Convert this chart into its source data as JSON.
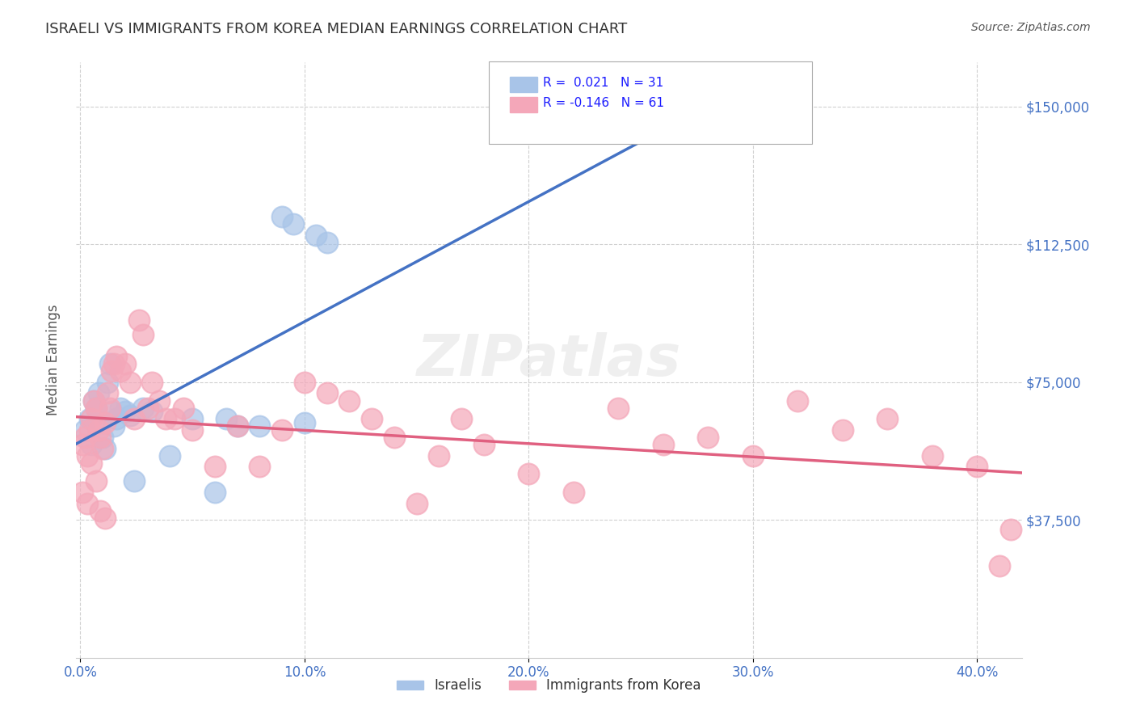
{
  "title": "ISRAELI VS IMMIGRANTS FROM KOREA MEDIAN EARNINGS CORRELATION CHART",
  "source": "Source: ZipAtlas.com",
  "ylabel": "Median Earnings",
  "watermark": "ZIPatlas",
  "ytick_labels": [
    "$37,500",
    "$75,000",
    "$112,500",
    "$150,000"
  ],
  "ytick_values": [
    37500,
    75000,
    112500,
    150000
  ],
  "ymin": 0,
  "ymax": 162000,
  "xmin": -0.002,
  "xmax": 0.42,
  "israeli_color": "#a8c4e8",
  "korea_color": "#f4a7b9",
  "israeli_line_color": "#4472c4",
  "korea_line_color": "#e06080",
  "grid_color": "#d0d0d0",
  "title_color": "#333333",
  "axis_label_color": "#4472c4",
  "israeli_x": [
    0.002,
    0.004,
    0.005,
    0.006,
    0.007,
    0.008,
    0.009,
    0.01,
    0.011,
    0.012,
    0.013,
    0.014,
    0.015,
    0.016,
    0.018,
    0.02,
    0.022,
    0.024,
    0.028,
    0.032,
    0.04,
    0.05,
    0.06,
    0.065,
    0.07,
    0.08,
    0.09,
    0.095,
    0.1,
    0.105,
    0.11
  ],
  "israeli_y": [
    62000,
    65000,
    58000,
    70000,
    68000,
    72000,
    64000,
    60000,
    57000,
    75000,
    80000,
    67000,
    63000,
    65000,
    68000,
    67000,
    66000,
    48000,
    68000,
    67000,
    55000,
    65000,
    45000,
    65000,
    63000,
    63000,
    120000,
    118000,
    64000,
    115000,
    113000
  ],
  "korea_x": [
    0.001,
    0.002,
    0.003,
    0.004,
    0.005,
    0.006,
    0.007,
    0.008,
    0.009,
    0.01,
    0.011,
    0.012,
    0.013,
    0.014,
    0.015,
    0.016,
    0.018,
    0.02,
    0.022,
    0.024,
    0.026,
    0.028,
    0.03,
    0.032,
    0.035,
    0.038,
    0.042,
    0.046,
    0.05,
    0.06,
    0.07,
    0.08,
    0.09,
    0.1,
    0.11,
    0.12,
    0.13,
    0.14,
    0.15,
    0.16,
    0.17,
    0.18,
    0.2,
    0.22,
    0.24,
    0.26,
    0.28,
    0.3,
    0.32,
    0.34,
    0.36,
    0.38,
    0.4,
    0.41,
    0.415,
    0.001,
    0.003,
    0.005,
    0.007,
    0.009,
    0.011
  ],
  "korea_y": [
    58000,
    60000,
    55000,
    62000,
    65000,
    70000,
    68000,
    62000,
    60000,
    57000,
    64000,
    72000,
    68000,
    78000,
    80000,
    82000,
    78000,
    80000,
    75000,
    65000,
    92000,
    88000,
    68000,
    75000,
    70000,
    65000,
    65000,
    68000,
    62000,
    52000,
    63000,
    52000,
    62000,
    75000,
    72000,
    70000,
    65000,
    60000,
    42000,
    55000,
    65000,
    58000,
    50000,
    45000,
    68000,
    58000,
    60000,
    55000,
    70000,
    62000,
    65000,
    55000,
    52000,
    25000,
    35000,
    45000,
    42000,
    53000,
    48000,
    40000,
    38000
  ]
}
